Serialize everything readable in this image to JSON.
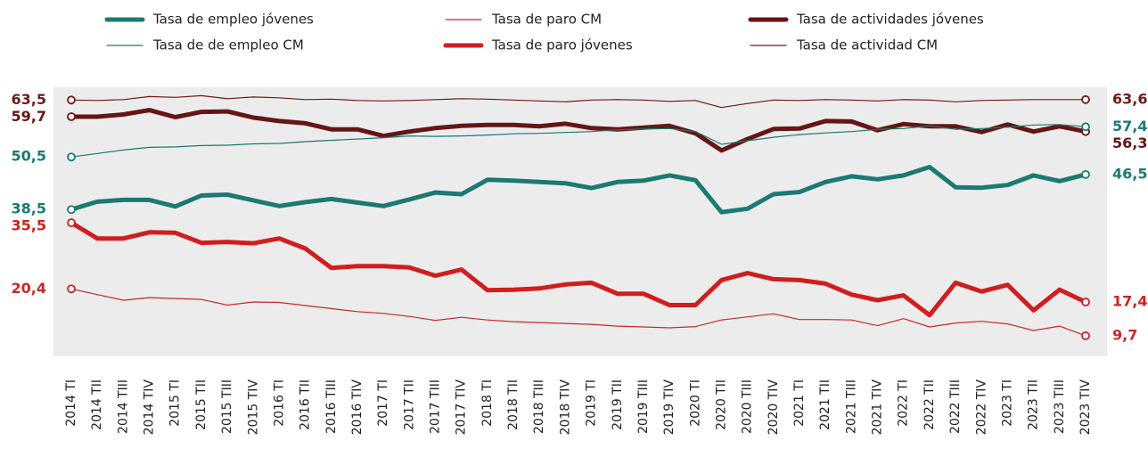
{
  "chart_data": {
    "type": "line",
    "categories": [
      "2014 TI",
      "2014 TII",
      "2014 TIII",
      "2014 TIV",
      "2015 TI",
      "2015 TII",
      "2015 TIII",
      "2015 TIV",
      "2016 TI",
      "2016 TII",
      "2016 TIII",
      "2016 TIV",
      "2017 TI",
      "2017 TII",
      "2017 TIII",
      "2017 TIV",
      "2018 TI",
      "2018 TII",
      "2018 TIII",
      "2018 TIV",
      "2019 TI",
      "2019 TII",
      "2019 TIII",
      "2019 TIV",
      "2020 TI",
      "2020 TII",
      "2020 TIII",
      "2020 TIV",
      "2021 TI",
      "2021 TII",
      "2021 TIII",
      "2021 TIV",
      "2022 TI",
      "2022 TII",
      "2022 TIII",
      "2022 TIV",
      "2023 TI",
      "2023 TII",
      "2023 TIII",
      "2023 TIV"
    ],
    "ylim": [
      5,
      66
    ],
    "series": [
      {
        "name": "Tasa de empleo jóvenes",
        "color": "#1b7a72",
        "line_width": 5,
        "values": [
          38.5,
          40.3,
          40.7,
          40.7,
          39.2,
          41.7,
          41.9,
          40.6,
          39.3,
          40.2,
          40.9,
          40.1,
          39.3,
          40.8,
          42.4,
          42.0,
          45.3,
          45.1,
          44.8,
          44.5,
          43.4,
          44.8,
          45.1,
          46.3,
          45.2,
          37.9,
          38.7,
          42.0,
          42.5,
          44.8,
          46.1,
          45.4,
          46.3,
          48.2,
          43.6,
          43.5,
          44.1,
          46.3,
          45.0,
          46.5
        ],
        "value_labels": [
          "38,5",
          null,
          null,
          null,
          null,
          null,
          null,
          null,
          null,
          null,
          null,
          null,
          null,
          null,
          null,
          null,
          null,
          null,
          null,
          null,
          null,
          null,
          null,
          null,
          null,
          null,
          null,
          null,
          null,
          null,
          null,
          null,
          null,
          null,
          null,
          null,
          null,
          null,
          null,
          "46,5"
        ]
      },
      {
        "name": "Tasa de paro CM",
        "color": "#c8282c",
        "line_width": 1.2,
        "values": [
          20.4,
          19.1,
          17.8,
          18.4,
          18.2,
          18.0,
          16.7,
          17.4,
          17.3,
          16.6,
          15.9,
          15.2,
          14.8,
          14.1,
          13.2,
          13.9,
          13.3,
          12.9,
          12.7,
          12.5,
          12.3,
          11.9,
          11.7,
          11.5,
          11.8,
          13.3,
          14.0,
          14.7,
          13.4,
          13.4,
          13.3,
          12.0,
          13.6,
          11.7,
          12.6,
          13.0,
          12.4,
          10.9,
          11.9,
          9.7
        ],
        "value_labels": [
          "20,4",
          null,
          null,
          null,
          null,
          null,
          null,
          null,
          null,
          null,
          null,
          null,
          null,
          null,
          null,
          null,
          null,
          null,
          null,
          null,
          null,
          null,
          null,
          null,
          null,
          null,
          null,
          null,
          null,
          null,
          null,
          null,
          null,
          null,
          null,
          null,
          null,
          null,
          null,
          "9,7"
        ]
      },
      {
        "name": "Tasa de actividades jóvenes",
        "color": "#661515",
        "line_width": 5,
        "values": [
          59.7,
          59.7,
          60.2,
          61.2,
          59.6,
          60.8,
          60.9,
          59.5,
          58.7,
          58.2,
          56.8,
          56.8,
          55.3,
          56.3,
          57.1,
          57.6,
          57.8,
          57.8,
          57.5,
          58.1,
          57.1,
          56.8,
          57.2,
          57.6,
          55.9,
          52.0,
          54.6,
          56.9,
          57.0,
          58.7,
          58.6,
          56.6,
          58.0,
          57.5,
          57.5,
          56.2,
          57.9,
          56.3,
          57.5,
          56.3
        ],
        "value_labels": [
          "59,7",
          null,
          null,
          null,
          null,
          null,
          null,
          null,
          null,
          null,
          null,
          null,
          null,
          null,
          null,
          null,
          null,
          null,
          null,
          null,
          null,
          null,
          null,
          null,
          null,
          null,
          null,
          null,
          null,
          null,
          null,
          null,
          null,
          null,
          null,
          null,
          null,
          null,
          null,
          "56,3"
        ]
      },
      {
        "name": "Tasa de de empleo CM",
        "color": "#1b7a72",
        "line_width": 1.2,
        "values": [
          50.5,
          51.3,
          52.1,
          52.7,
          52.8,
          53.1,
          53.2,
          53.5,
          53.6,
          54.0,
          54.3,
          54.6,
          54.9,
          55.3,
          55.2,
          55.3,
          55.5,
          55.8,
          55.9,
          56.1,
          56.3,
          56.7,
          56.9,
          57.0,
          56.3,
          53.4,
          54.2,
          55.0,
          55.6,
          56.0,
          56.3,
          56.8,
          57.0,
          57.6,
          56.8,
          57.0,
          57.3,
          57.8,
          57.9,
          57.4
        ],
        "value_labels": [
          "50,5",
          null,
          null,
          null,
          null,
          null,
          null,
          null,
          null,
          null,
          null,
          null,
          null,
          null,
          null,
          null,
          null,
          null,
          null,
          null,
          null,
          null,
          null,
          null,
          null,
          null,
          null,
          null,
          null,
          null,
          null,
          null,
          null,
          null,
          null,
          null,
          null,
          null,
          null,
          "57,4"
        ]
      },
      {
        "name": "Tasa de paro jóvenes",
        "color": "#d01e1e",
        "line_width": 5,
        "values": [
          35.5,
          31.9,
          31.9,
          33.3,
          33.2,
          30.9,
          31.1,
          30.8,
          31.9,
          29.6,
          25.2,
          25.6,
          25.6,
          25.3,
          23.4,
          24.8,
          20.1,
          20.2,
          20.5,
          21.4,
          21.8,
          19.3,
          19.3,
          16.7,
          16.7,
          22.4,
          24.0,
          22.6,
          22.4,
          21.6,
          19.1,
          17.8,
          18.9,
          14.4,
          21.8,
          19.8,
          21.3,
          15.5,
          20.2,
          17.4
        ],
        "value_labels": [
          "35,5",
          null,
          null,
          null,
          null,
          null,
          null,
          null,
          null,
          null,
          null,
          null,
          null,
          null,
          null,
          null,
          null,
          null,
          null,
          null,
          null,
          null,
          null,
          null,
          null,
          null,
          null,
          null,
          null,
          null,
          null,
          null,
          null,
          null,
          null,
          null,
          null,
          null,
          null,
          "17,4"
        ]
      },
      {
        "name": "Tasa de actividad CM",
        "color": "#6e1a1a",
        "line_width": 1.2,
        "values": [
          63.5,
          63.4,
          63.6,
          64.3,
          64.1,
          64.5,
          63.8,
          64.2,
          64.0,
          63.6,
          63.7,
          63.4,
          63.3,
          63.4,
          63.6,
          63.8,
          63.7,
          63.5,
          63.3,
          63.1,
          63.5,
          63.6,
          63.5,
          63.2,
          63.4,
          61.8,
          62.7,
          63.5,
          63.4,
          63.6,
          63.5,
          63.3,
          63.6,
          63.5,
          63.1,
          63.4,
          63.5,
          63.6,
          63.6,
          63.6
        ],
        "value_labels": [
          "63,5",
          null,
          null,
          null,
          null,
          null,
          null,
          null,
          null,
          null,
          null,
          null,
          null,
          null,
          null,
          null,
          null,
          null,
          null,
          null,
          null,
          null,
          null,
          null,
          null,
          null,
          null,
          null,
          null,
          null,
          null,
          null,
          null,
          null,
          null,
          null,
          null,
          null,
          null,
          "63,6"
        ]
      }
    ]
  }
}
